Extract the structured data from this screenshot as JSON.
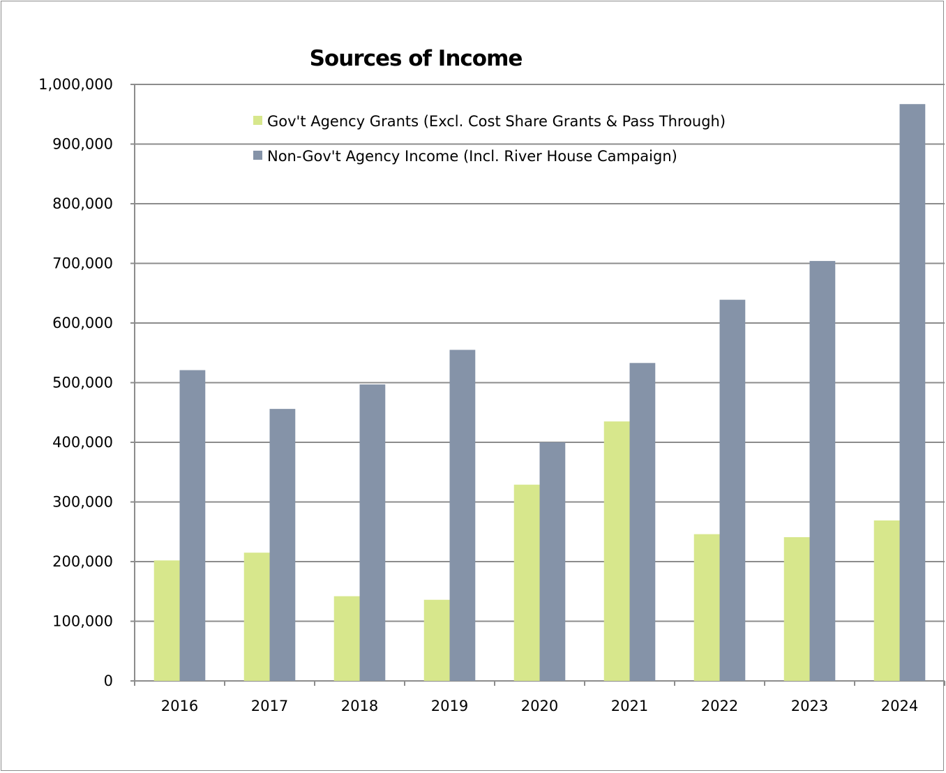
{
  "chart_data": {
    "type": "bar",
    "title": "Sources of Income",
    "xlabel": "",
    "ylabel": "",
    "ylim": [
      0,
      1000000
    ],
    "yticks": [
      0,
      100000,
      200000,
      300000,
      400000,
      500000,
      600000,
      700000,
      800000,
      900000,
      1000000
    ],
    "ytick_labels": [
      "0",
      "100,000",
      "200,000",
      "300,000",
      "400,000",
      "500,000",
      "600,000",
      "700,000",
      "800,000",
      "900,000",
      "1,000,000"
    ],
    "categories": [
      "2016",
      "2017",
      "2018",
      "2019",
      "2020",
      "2021",
      "2022",
      "2023",
      "2024"
    ],
    "grid": true,
    "legend_position": "top",
    "series": [
      {
        "name": "Gov't Agency Grants (Excl. Cost Share Grants & Pass Through)",
        "color": "#d7e78c",
        "values": [
          202000,
          215000,
          142000,
          136000,
          329000,
          435000,
          246000,
          241000,
          269000
        ]
      },
      {
        "name": "Non-Gov't Agency Income (Incl. River House Campaign)",
        "color": "#8593a8",
        "values": [
          521000,
          456000,
          497000,
          555000,
          400000,
          533000,
          639000,
          704000,
          967000
        ]
      }
    ]
  }
}
